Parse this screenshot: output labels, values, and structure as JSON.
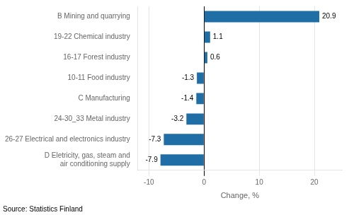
{
  "chart_data": {
    "type": "bar",
    "orientation": "horizontal",
    "categories": [
      "D Eletricity, gas, steam and\nair conditioning supply",
      "26-27 Electrical and electronics industry",
      "24-30_33 Metal industry",
      "C Manufacturing",
      "10-11 Food industry",
      "16-17 Forest industry",
      "19-22 Chemical industry",
      "B Mining and quarrying"
    ],
    "values": [
      -7.9,
      -7.3,
      -3.2,
      -1.4,
      -1.3,
      0.6,
      1.1,
      20.9
    ],
    "color": "#1F6EA6",
    "xlabel": "Change, %",
    "xlim": [
      -12,
      25
    ],
    "xticks": [
      -10,
      0,
      10,
      20
    ],
    "grid": true,
    "data_labels": true,
    "annotation": "Source: Statistics Finland"
  }
}
